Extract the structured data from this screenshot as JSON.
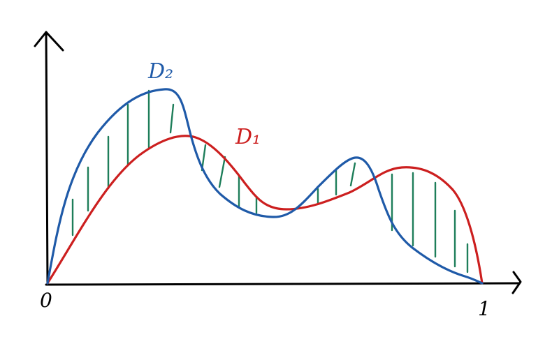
{
  "labels": {
    "origin": "0",
    "x_end": "1",
    "curve_d1": "D₁",
    "curve_d2": "D₂"
  },
  "colors": {
    "axis": "#000000",
    "d1": "#cc1f1f",
    "d2": "#1f5aa8",
    "hatch": "#1e7e5a"
  }
}
